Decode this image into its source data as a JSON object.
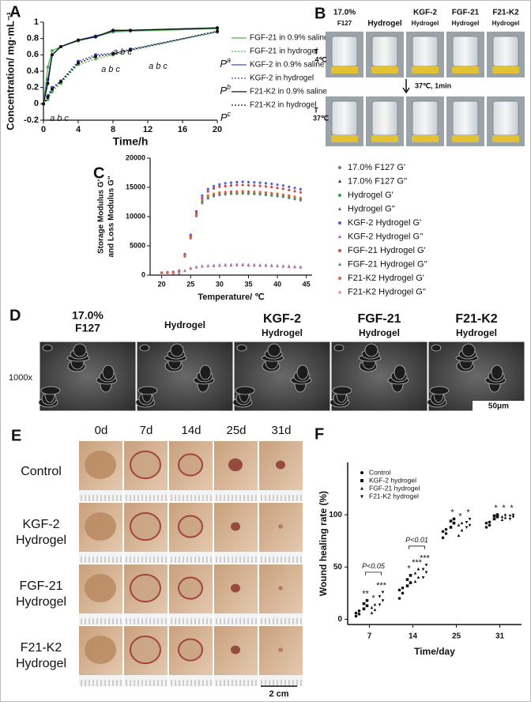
{
  "panel_labels": [
    "A",
    "B",
    "C",
    "D",
    "E",
    "F"
  ],
  "chart_data": [
    {
      "type": "line",
      "x_label": "Time/h",
      "y_label": "Concentration/ mg·mL⁻¹",
      "x": [
        0,
        0.5,
        1,
        2,
        4,
        6,
        8,
        10,
        20
      ],
      "xlim": [
        0,
        20
      ],
      "xticks": [
        0,
        4,
        8,
        12,
        16,
        20
      ],
      "ylim": [
        -0.2,
        1.0
      ],
      "yticks": [
        -0.2,
        0.0,
        0.2,
        0.4,
        0.6,
        0.8,
        1.0
      ],
      "series": [
        {
          "name": "FGF-21 in 0.9% saline",
          "color": "#4cb84c",
          "line_style": "solid",
          "values": [
            0,
            0.45,
            0.65,
            0.7,
            0.77,
            0.82,
            0.88,
            0.89,
            0.92
          ]
        },
        {
          "name": "FGF-21 in hydrogel",
          "color": "#4cb84c",
          "line_style": "dotted",
          "values": [
            0,
            0.05,
            0.15,
            0.25,
            0.48,
            0.55,
            0.6,
            0.65,
            0.88
          ]
        },
        {
          "name": "KGF-2  in 0.9% saline",
          "color": "#3a4fc0",
          "line_style": "solid",
          "values": [
            0,
            0.3,
            0.6,
            0.7,
            0.78,
            0.83,
            0.89,
            0.9,
            0.93
          ]
        },
        {
          "name": "KGF-2  in hydrogel",
          "color": "#3a4fc0",
          "line_style": "dotted",
          "values": [
            0,
            0.1,
            0.2,
            0.28,
            0.52,
            0.6,
            0.62,
            0.67,
            0.88
          ]
        },
        {
          "name": "F21-K2 in 0.9% saline",
          "color": "#111111",
          "line_style": "solid",
          "values": [
            0,
            0.25,
            0.6,
            0.7,
            0.78,
            0.82,
            0.9,
            0.9,
            0.93
          ]
        },
        {
          "name": "F21-K2 in hydrogel",
          "color": "#111111",
          "line_style": "dotted",
          "values": [
            0,
            0.08,
            0.18,
            0.27,
            0.5,
            0.58,
            0.61,
            0.66,
            0.89
          ]
        }
      ],
      "annotations": [
        "a b c",
        "a b c",
        "a b c",
        "a b c"
      ],
      "p_labels": [
        {
          "text": "P",
          "sup": "a"
        },
        {
          "text": "P",
          "sup": "b"
        },
        {
          "text": "P",
          "sup": "c"
        }
      ]
    },
    {
      "type": "scatter",
      "x_label": "Temperature/ ℃",
      "y_label": [
        "Storage Modulus G'",
        "and Loss Modulus G''"
      ],
      "x": [
        20,
        21,
        22,
        23,
        24,
        25,
        26,
        27,
        28,
        29,
        30,
        31,
        32,
        33,
        34,
        35,
        36,
        37,
        38,
        39,
        40,
        41,
        42,
        43,
        44
      ],
      "xlim": [
        18,
        46
      ],
      "xticks": [
        20,
        25,
        30,
        35,
        40,
        45
      ],
      "ylim": [
        0,
        20000
      ],
      "yticks": [
        0,
        5000,
        10000,
        15000,
        20000
      ],
      "series": [
        {
          "name": "17.0% F127 G'",
          "color": "#8e6b9e",
          "marker": "circle",
          "values": [
            350,
            420,
            480,
            650,
            3200,
            6300,
            10100,
            12300,
            13100,
            13500,
            13700,
            13800,
            13900,
            13900,
            13950,
            13900,
            13850,
            13800,
            13700,
            13600,
            13500,
            13400,
            13200,
            13000,
            12800
          ]
        },
        {
          "name": "17.0% F127 G''",
          "color": "#333333",
          "marker": "triangle",
          "values": [
            150,
            200,
            250,
            300,
            700,
            1100,
            1300,
            1450,
            1500,
            1550,
            1600,
            1650,
            1650,
            1700,
            1700,
            1650,
            1650,
            1600,
            1600,
            1550,
            1500,
            1450,
            1400,
            1350,
            1300
          ]
        },
        {
          "name": "Hydrogel  G'",
          "color": "#2e9e4a",
          "marker": "circle",
          "values": [
            380,
            450,
            520,
            700,
            3400,
            6600,
            10300,
            12600,
            13300,
            13700,
            13900,
            14000,
            14050,
            14100,
            14100,
            14050,
            14000,
            13950,
            13850,
            13750,
            13650,
            13500,
            13350,
            13150,
            12950
          ]
        },
        {
          "name": "Hydrogel  G''",
          "color": "#1f7a3a",
          "marker": "triangle",
          "values": [
            170,
            220,
            270,
            330,
            750,
            1150,
            1350,
            1500,
            1550,
            1600,
            1650,
            1700,
            1700,
            1750,
            1750,
            1700,
            1700,
            1650,
            1650,
            1600,
            1550,
            1500,
            1450,
            1400,
            1350
          ]
        },
        {
          "name": "KGF-2 Hydrogel G'",
          "color": "#5b5bd6",
          "marker": "circle",
          "values": [
            420,
            500,
            560,
            760,
            3600,
            6900,
            10900,
            13600,
            14700,
            15200,
            15500,
            15700,
            15800,
            15900,
            15950,
            15900,
            15850,
            15800,
            15700,
            15600,
            15450,
            15300,
            15100,
            14900,
            14700
          ]
        },
        {
          "name": "KGF-2 Hydrogel G''",
          "color": "#9b59d0",
          "marker": "triangle",
          "values": [
            200,
            240,
            300,
            360,
            800,
            1250,
            1450,
            1600,
            1650,
            1700,
            1750,
            1800,
            1800,
            1850,
            1850,
            1800,
            1800,
            1750,
            1750,
            1700,
            1650,
            1600,
            1550,
            1500,
            1450
          ]
        },
        {
          "name": "FGF-21 Hydrogel G'",
          "color": "#d04848",
          "marker": "circle",
          "values": [
            400,
            480,
            540,
            720,
            3500,
            6700,
            10600,
            13200,
            14300,
            14800,
            15100,
            15200,
            15300,
            15400,
            15400,
            15350,
            15300,
            15250,
            15150,
            15050,
            14900,
            14750,
            14550,
            14350,
            14150
          ]
        },
        {
          "name": "FGF-21 Hydrogel  G''",
          "color": "#4a6fc0",
          "marker": "triangle",
          "values": [
            190,
            230,
            290,
            350,
            780,
            1200,
            1400,
            1550,
            1600,
            1650,
            1700,
            1750,
            1750,
            1800,
            1800,
            1750,
            1750,
            1700,
            1700,
            1650,
            1600,
            1550,
            1500,
            1450,
            1400
          ]
        },
        {
          "name": "F21-K2 Hydrogel G'",
          "color": "#e8603c",
          "marker": "circle",
          "values": [
            370,
            440,
            500,
            680,
            3300,
            6400,
            10200,
            12900,
            13600,
            13900,
            14100,
            14200,
            14300,
            14300,
            14350,
            14300,
            14250,
            14200,
            14100,
            14000,
            13900,
            13750,
            13600,
            13400,
            13200
          ]
        },
        {
          "name": "F21-K2 Hydrogel G''",
          "color": "#e0708a",
          "marker": "triangle",
          "values": [
            160,
            210,
            260,
            320,
            720,
            1120,
            1320,
            1470,
            1520,
            1570,
            1620,
            1670,
            1670,
            1720,
            1720,
            1670,
            1670,
            1620,
            1620,
            1570,
            1520,
            1470,
            1420,
            1370,
            1320
          ]
        }
      ]
    },
    {
      "type": "strip",
      "x_label": "Time/day",
      "y_label": "Wound healing rate (%)",
      "categories": [
        "7",
        "14",
        "25",
        "31"
      ],
      "ylim": [
        -5,
        150
      ],
      "yticks": [
        0,
        50,
        100
      ],
      "series": [
        {
          "name": "Control",
          "color": "#111111",
          "marker": "circle",
          "values": [
            [
              3,
              5,
              6,
              8
            ],
            [
              20,
              25,
              28,
              30
            ],
            [
              78,
              82,
              84,
              86
            ],
            [
              88,
              90,
              92,
              93
            ]
          ]
        },
        {
          "name": "KGF-2 hydrogel",
          "color": "#111111",
          "marker": "square",
          "values": [
            [
              10,
              13,
              15,
              18
            ],
            [
              32,
              35,
              38,
              42
            ],
            [
              88,
              92,
              94,
              96
            ],
            [
              96,
              98,
              99,
              100
            ]
          ]
        },
        {
          "name": "FGF-21 hydrogel",
          "color": "#111111",
          "marker": "triangle",
          "values": [
            [
              6,
              9,
              11,
              14
            ],
            [
              36,
              40,
              44,
              48
            ],
            [
              80,
              85,
              90,
              92
            ],
            [
              95,
              97,
              98,
              100
            ]
          ]
        },
        {
          "name": "F21-K2 hydrogel",
          "color": "#111111",
          "marker": "triangle-down",
          "values": [
            [
              14,
              18,
              22,
              26
            ],
            [
              40,
              45,
              48,
              52
            ],
            [
              88,
              90,
              93,
              96
            ],
            [
              96,
              98,
              99,
              100
            ]
          ]
        }
      ],
      "stars": [
        [
          "**",
          "*",
          "***"
        ],
        [
          "*",
          "***",
          "***"
        ],
        [
          "*",
          "*",
          "*"
        ],
        [
          "*",
          "*",
          "*"
        ]
      ],
      "brackets": [
        "P<0.05",
        "P<0.01"
      ]
    }
  ],
  "panel_b": {
    "columns": [
      [
        "17.0%",
        "F127"
      ],
      [
        "Hydrogel"
      ],
      [
        "KGF-2",
        "Hydrogel"
      ],
      [
        "FGF-21",
        "Hydrogel"
      ],
      [
        "F21-K2",
        "Hydrogel"
      ]
    ],
    "rows": [
      [
        "T",
        "4℃"
      ],
      [
        "T",
        "37℃"
      ]
    ],
    "transition": "37℃,  1min"
  },
  "panel_d": {
    "columns": [
      [
        "17.0%",
        "F127"
      ],
      [
        "Hydrogel"
      ],
      [
        "KGF-2",
        "Hydrogel"
      ],
      [
        "FGF-21",
        "Hydrogel"
      ],
      [
        "F21-K2",
        "Hydrogel"
      ]
    ],
    "magnification": "1000x",
    "scale_bar": "50μm"
  },
  "panel_e": {
    "columns": [
      "0d",
      "7d",
      "14d",
      "25d",
      "31d"
    ],
    "rows": [
      [
        "Control"
      ],
      [
        "KGF-2",
        "Hydrogel"
      ],
      [
        "FGF-21",
        "Hydrogel"
      ],
      [
        "F21-K2",
        "Hydrogel"
      ]
    ],
    "scale_bar": "2 cm"
  }
}
